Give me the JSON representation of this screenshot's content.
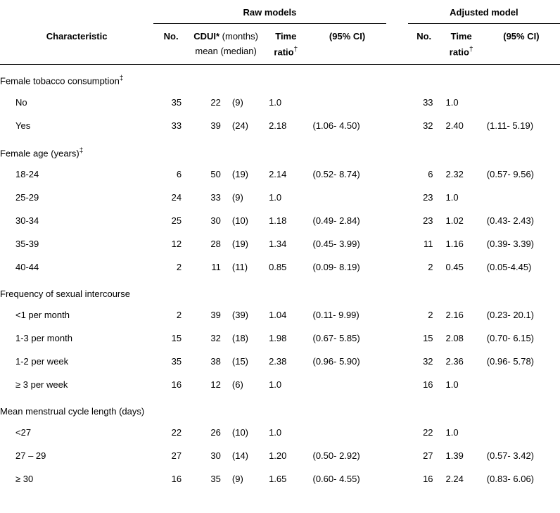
{
  "spanners": {
    "raw": "Raw models",
    "adj": "Adjusted model"
  },
  "head": {
    "characteristic": "Characteristic",
    "no": "No.",
    "cdui_bold": "CDUI*",
    "cdui_norm": "(months)",
    "cdui_sub": "mean (median)",
    "ratio_bold": "Time",
    "ratio_sub": "ratio",
    "ratio_dag": "†",
    "ci": "(95% CI)"
  },
  "sections": [
    {
      "label": "Female tobacco consumption",
      "dagger": "‡",
      "rows": [
        {
          "label": "No",
          "raw": {
            "no": "35",
            "mean": "22",
            "median": "(9)",
            "ratio": "1.0",
            "ci": ""
          },
          "adj": {
            "no": "33",
            "ratio": "1.0",
            "ci": ""
          }
        },
        {
          "label": "Yes",
          "raw": {
            "no": "33",
            "mean": "39",
            "median": "(24)",
            "ratio": "2.18",
            "ci": "(1.06- 4.50)"
          },
          "adj": {
            "no": "32",
            "ratio": "2.40",
            "ci": "(1.11- 5.19)"
          }
        }
      ]
    },
    {
      "label": "Female age (years)",
      "dagger": "‡",
      "rows": [
        {
          "label": "18-24",
          "raw": {
            "no": "6",
            "mean": "50",
            "median": "(19)",
            "ratio": "2.14",
            "ci": "(0.52- 8.74)"
          },
          "adj": {
            "no": "6",
            "ratio": "2.32",
            "ci": "(0.57- 9.56)"
          }
        },
        {
          "label": "25-29",
          "raw": {
            "no": "24",
            "mean": "33",
            "median": "(9)",
            "ratio": "1.0",
            "ci": ""
          },
          "adj": {
            "no": "23",
            "ratio": "1.0",
            "ci": ""
          }
        },
        {
          "label": "30-34",
          "raw": {
            "no": "25",
            "mean": "30",
            "median": "(10)",
            "ratio": "1.18",
            "ci": "(0.49- 2.84)"
          },
          "adj": {
            "no": "23",
            "ratio": "1.02",
            "ci": "(0.43- 2.43)"
          }
        },
        {
          "label": "35-39",
          "raw": {
            "no": "12",
            "mean": "28",
            "median": "(19)",
            "ratio": "1.34",
            "ci": "(0.45- 3.99)"
          },
          "adj": {
            "no": "11",
            "ratio": "1.16",
            "ci": "(0.39- 3.39)"
          }
        },
        {
          "label": "40-44",
          "raw": {
            "no": "2",
            "mean": "11",
            "median": "(11)",
            "ratio": "0.85",
            "ci": "(0.09- 8.19)"
          },
          "adj": {
            "no": "2",
            "ratio": "0.45",
            "ci": "(0.05-4.45)"
          }
        }
      ]
    },
    {
      "label": "Frequency of sexual intercourse",
      "dagger": "",
      "rows": [
        {
          "label": "<1 per month",
          "raw": {
            "no": "2",
            "mean": "39",
            "median": "(39)",
            "ratio": "1.04",
            "ci": "(0.11- 9.99)"
          },
          "adj": {
            "no": "2",
            "ratio": "2.16",
            "ci": "(0.23- 20.1)"
          }
        },
        {
          "label": "1-3 per month",
          "raw": {
            "no": "15",
            "mean": "32",
            "median": "(18)",
            "ratio": "1.98",
            "ci": "(0.67- 5.85)"
          },
          "adj": {
            "no": "15",
            "ratio": "2.08",
            "ci": "(0.70- 6.15)"
          }
        },
        {
          "label": "1-2 per week",
          "raw": {
            "no": "35",
            "mean": "38",
            "median": "(15)",
            "ratio": "2.38",
            "ci": "(0.96- 5.90)"
          },
          "adj": {
            "no": "32",
            "ratio": "2.36",
            "ci": "(0.96- 5.78)"
          }
        },
        {
          "label": "≥ 3 per week",
          "raw": {
            "no": "16",
            "mean": "12",
            "median": "(6)",
            "ratio": "1.0",
            "ci": ""
          },
          "adj": {
            "no": "16",
            "ratio": "1.0",
            "ci": ""
          }
        }
      ]
    },
    {
      "label": "Mean menstrual cycle length (days)",
      "dagger": "",
      "rows": [
        {
          "label": "<27",
          "raw": {
            "no": "22",
            "mean": "26",
            "median": "(10)",
            "ratio": "1.0",
            "ci": ""
          },
          "adj": {
            "no": "22",
            "ratio": "1.0",
            "ci": ""
          }
        },
        {
          "label": "27 – 29",
          "raw": {
            "no": "27",
            "mean": "30",
            "median": "(14)",
            "ratio": "1.20",
            "ci": "(0.50- 2.92)"
          },
          "adj": {
            "no": "27",
            "ratio": "1.39",
            "ci": "(0.57- 3.42)"
          }
        },
        {
          "label": "≥ 30",
          "raw": {
            "no": "16",
            "mean": "35",
            "median": "(9)",
            "ratio": "1.65",
            "ci": "(0.60- 4.55)"
          },
          "adj": {
            "no": "16",
            "ratio": "2.24",
            "ci": "(0.83- 6.06)"
          }
        }
      ]
    }
  ]
}
